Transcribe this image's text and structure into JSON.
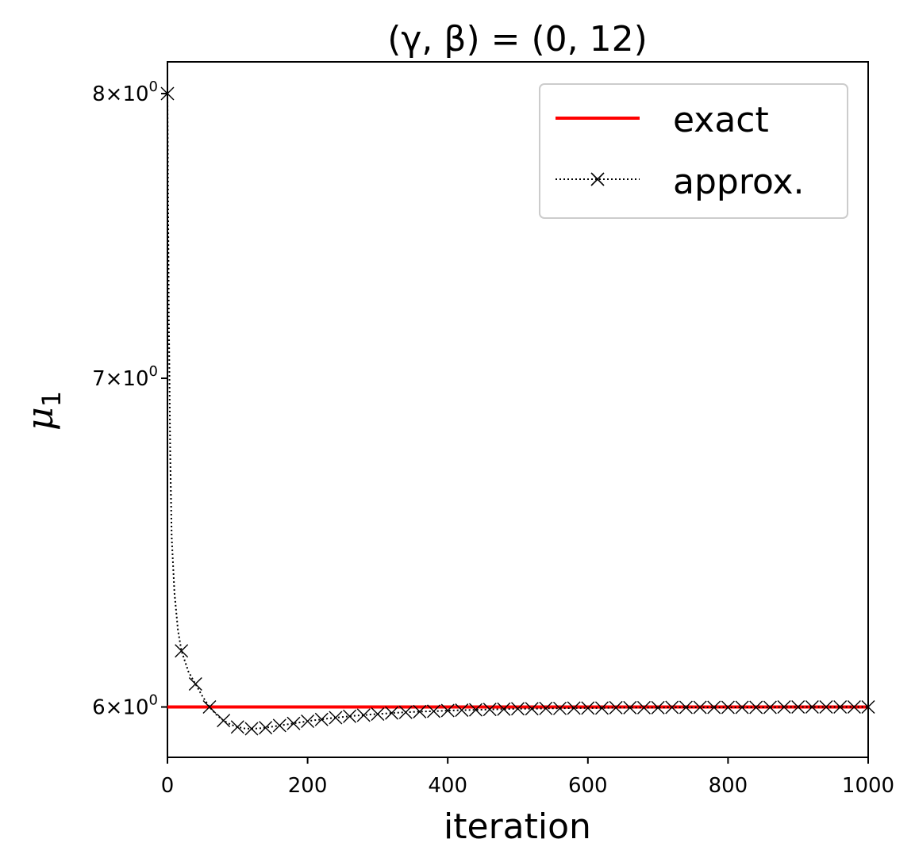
{
  "chart_data": {
    "type": "line",
    "title": "(γ, β) = (0, 12)",
    "xlabel": "iteration",
    "ylabel_symbol": "μ",
    "ylabel_subscript": "1",
    "xlim": [
      0,
      1000
    ],
    "ylim": [
      5.86,
      8.12
    ],
    "yscale": "log",
    "grid": false,
    "legend_position": "top-right",
    "x_ticks": [
      0,
      200,
      400,
      600,
      800,
      1000
    ],
    "x_tick_labels": [
      "0",
      "200",
      "400",
      "600",
      "800",
      "1000"
    ],
    "y_ticks": [
      6,
      7,
      8
    ],
    "y_tick_mantissas": [
      "6",
      "7",
      "8"
    ],
    "y_tick_times": "×",
    "y_tick_base": "10",
    "y_tick_exponent": "0",
    "series": [
      {
        "name": "exact",
        "color": "#ff0000",
        "line_style": "solid",
        "x": [
          0,
          1000
        ],
        "y": [
          6.0,
          6.0
        ]
      },
      {
        "name": "approx.",
        "color": "#000000",
        "line_style": "dotted",
        "marker": "x",
        "x": [
          0,
          2,
          4,
          6,
          10,
          15,
          20,
          30,
          40,
          50,
          60,
          70,
          80,
          90,
          100,
          110,
          120,
          130,
          140,
          150,
          160,
          170,
          180,
          190,
          200,
          210,
          220,
          230,
          240,
          250,
          260,
          270,
          280,
          290,
          300,
          320,
          340,
          360,
          380,
          400,
          420,
          440,
          460,
          480,
          500,
          520,
          540,
          560,
          580,
          600,
          620,
          640,
          660,
          680,
          700,
          720,
          740,
          760,
          780,
          800,
          820,
          840,
          860,
          880,
          900,
          920,
          940,
          960,
          980,
          1000
        ],
        "y": [
          8.0,
          7.2,
          6.75,
          6.5,
          6.33,
          6.22,
          6.16,
          6.1,
          6.065,
          6.03,
          6.0,
          5.978,
          5.962,
          5.951,
          5.944,
          5.94,
          5.939,
          5.94,
          5.942,
          5.945,
          5.948,
          5.951,
          5.954,
          5.957,
          5.96,
          5.963,
          5.965,
          5.968,
          5.97,
          5.972,
          5.974,
          5.976,
          5.977,
          5.979,
          5.98,
          5.983,
          5.985,
          5.987,
          5.988,
          5.99,
          5.991,
          5.992,
          5.993,
          5.994,
          5.995,
          5.995,
          5.996,
          5.996,
          5.997,
          5.997,
          5.997,
          5.998,
          5.998,
          5.998,
          5.998,
          5.999,
          5.999,
          5.999,
          5.999,
          5.999,
          5.999,
          5.999,
          5.999,
          6.0,
          6.0,
          6.0,
          6.0,
          6.0,
          6.0,
          6.0
        ],
        "marker_x": [
          0,
          20,
          40,
          60,
          80,
          100,
          120,
          140,
          160,
          180,
          200,
          220,
          240,
          260,
          280,
          300,
          320,
          340,
          360,
          380,
          400,
          420,
          440,
          460,
          480,
          500,
          520,
          540,
          560,
          580,
          600,
          620,
          640,
          660,
          680,
          700,
          720,
          740,
          760,
          780,
          800,
          820,
          840,
          860,
          880,
          900,
          920,
          940,
          960,
          980,
          1000
        ],
        "marker_y": [
          8.0,
          6.16,
          6.065,
          6.0,
          5.962,
          5.944,
          5.939,
          5.942,
          5.948,
          5.954,
          5.96,
          5.965,
          5.97,
          5.974,
          5.977,
          5.98,
          5.983,
          5.985,
          5.987,
          5.988,
          5.99,
          5.991,
          5.992,
          5.993,
          5.994,
          5.995,
          5.995,
          5.996,
          5.996,
          5.997,
          5.997,
          5.997,
          5.998,
          5.998,
          5.998,
          5.998,
          5.999,
          5.999,
          5.999,
          5.999,
          5.999,
          5.999,
          5.999,
          5.999,
          6.0,
          6.0,
          6.0,
          6.0,
          6.0,
          6.0,
          6.0
        ]
      }
    ]
  }
}
